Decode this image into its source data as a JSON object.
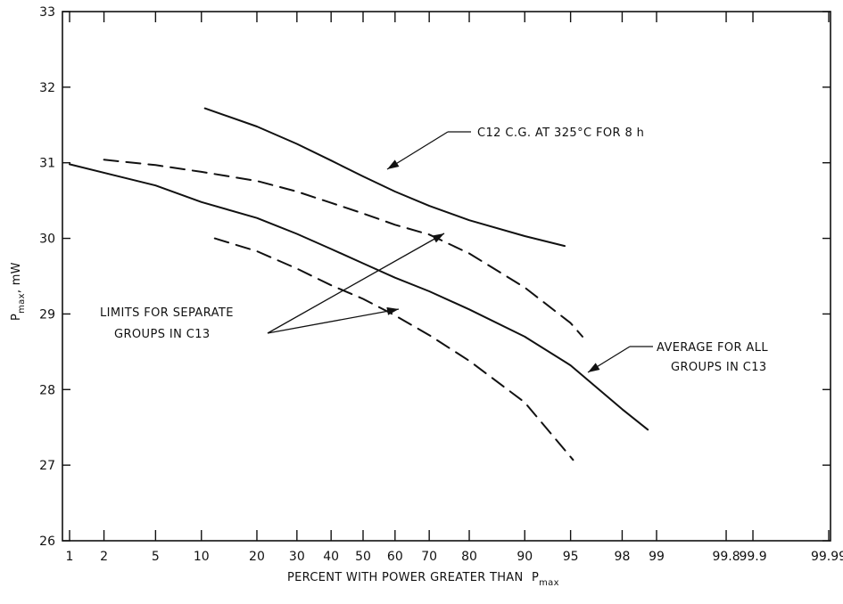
{
  "chart_data": {
    "type": "line",
    "xlabel": "PERCENT WITH POWER GREATER THAN",
    "xlabel_subscript_main": "P",
    "xlabel_subscript": "max",
    "ylabel_main": "P",
    "ylabel_subscript": "max",
    "ylabel_unit": ", mW",
    "x_scale": "normal-probability",
    "ylim": [
      26,
      33
    ],
    "y_ticks": [
      "26",
      "27",
      "28",
      "29",
      "30",
      "31",
      "32",
      "33"
    ],
    "x_ticks": [
      "1",
      "2",
      "5",
      "10",
      "20",
      "30",
      "40",
      "50",
      "60",
      "70",
      "80",
      "90",
      "95",
      "98",
      "99",
      "99.8",
      "99.9",
      "99.99"
    ],
    "grid": false,
    "series": [
      {
        "name": "C12  C.G. AT 325°C FOR 8 h",
        "style": "solid",
        "x": [
          10.5,
          20,
          30,
          40,
          50,
          60,
          70,
          80,
          90,
          94.5
        ],
        "y": [
          31.72,
          31.48,
          31.25,
          31.03,
          30.82,
          30.62,
          30.43,
          30.24,
          30.03,
          29.9
        ]
      },
      {
        "name": "AVERAGE FOR ALL GROUPS IN C13",
        "style": "solid",
        "x": [
          1,
          5,
          10,
          20,
          30,
          40,
          50,
          60,
          70,
          80,
          90,
          95,
          98,
          98.8
        ],
        "y": [
          30.98,
          30.7,
          30.48,
          30.27,
          30.06,
          29.86,
          29.67,
          29.48,
          29.3,
          29.06,
          28.7,
          28.32,
          27.74,
          27.47
        ]
      },
      {
        "name": "LIMITS FOR SEPARATE GROUPS IN C13 (upper)",
        "style": "dashed",
        "x": [
          2,
          5,
          10,
          20,
          30,
          40,
          50,
          60,
          70,
          80,
          90,
          95,
          95.9
        ],
        "y": [
          31.04,
          30.97,
          30.88,
          30.76,
          30.62,
          30.47,
          30.33,
          30.18,
          30.05,
          29.8,
          29.35,
          28.88,
          28.7
        ]
      },
      {
        "name": "LIMITS FOR SEPARATE GROUPS IN C13 (lower)",
        "style": "dashed",
        "x": [
          12,
          20,
          30,
          40,
          50,
          60,
          70,
          80,
          90,
          95.2
        ],
        "y": [
          30.0,
          29.83,
          29.6,
          29.38,
          29.2,
          28.98,
          28.72,
          28.38,
          27.83,
          27.07
        ]
      }
    ],
    "annotations": {
      "c12": "C12  C.G. AT 325°C FOR 8 h",
      "average_line1": "AVERAGE FOR ALL",
      "average_line2": "GROUPS IN C13",
      "limits_line1": "LIMITS FOR SEPARATE",
      "limits_line2": "GROUPS IN C13"
    }
  }
}
